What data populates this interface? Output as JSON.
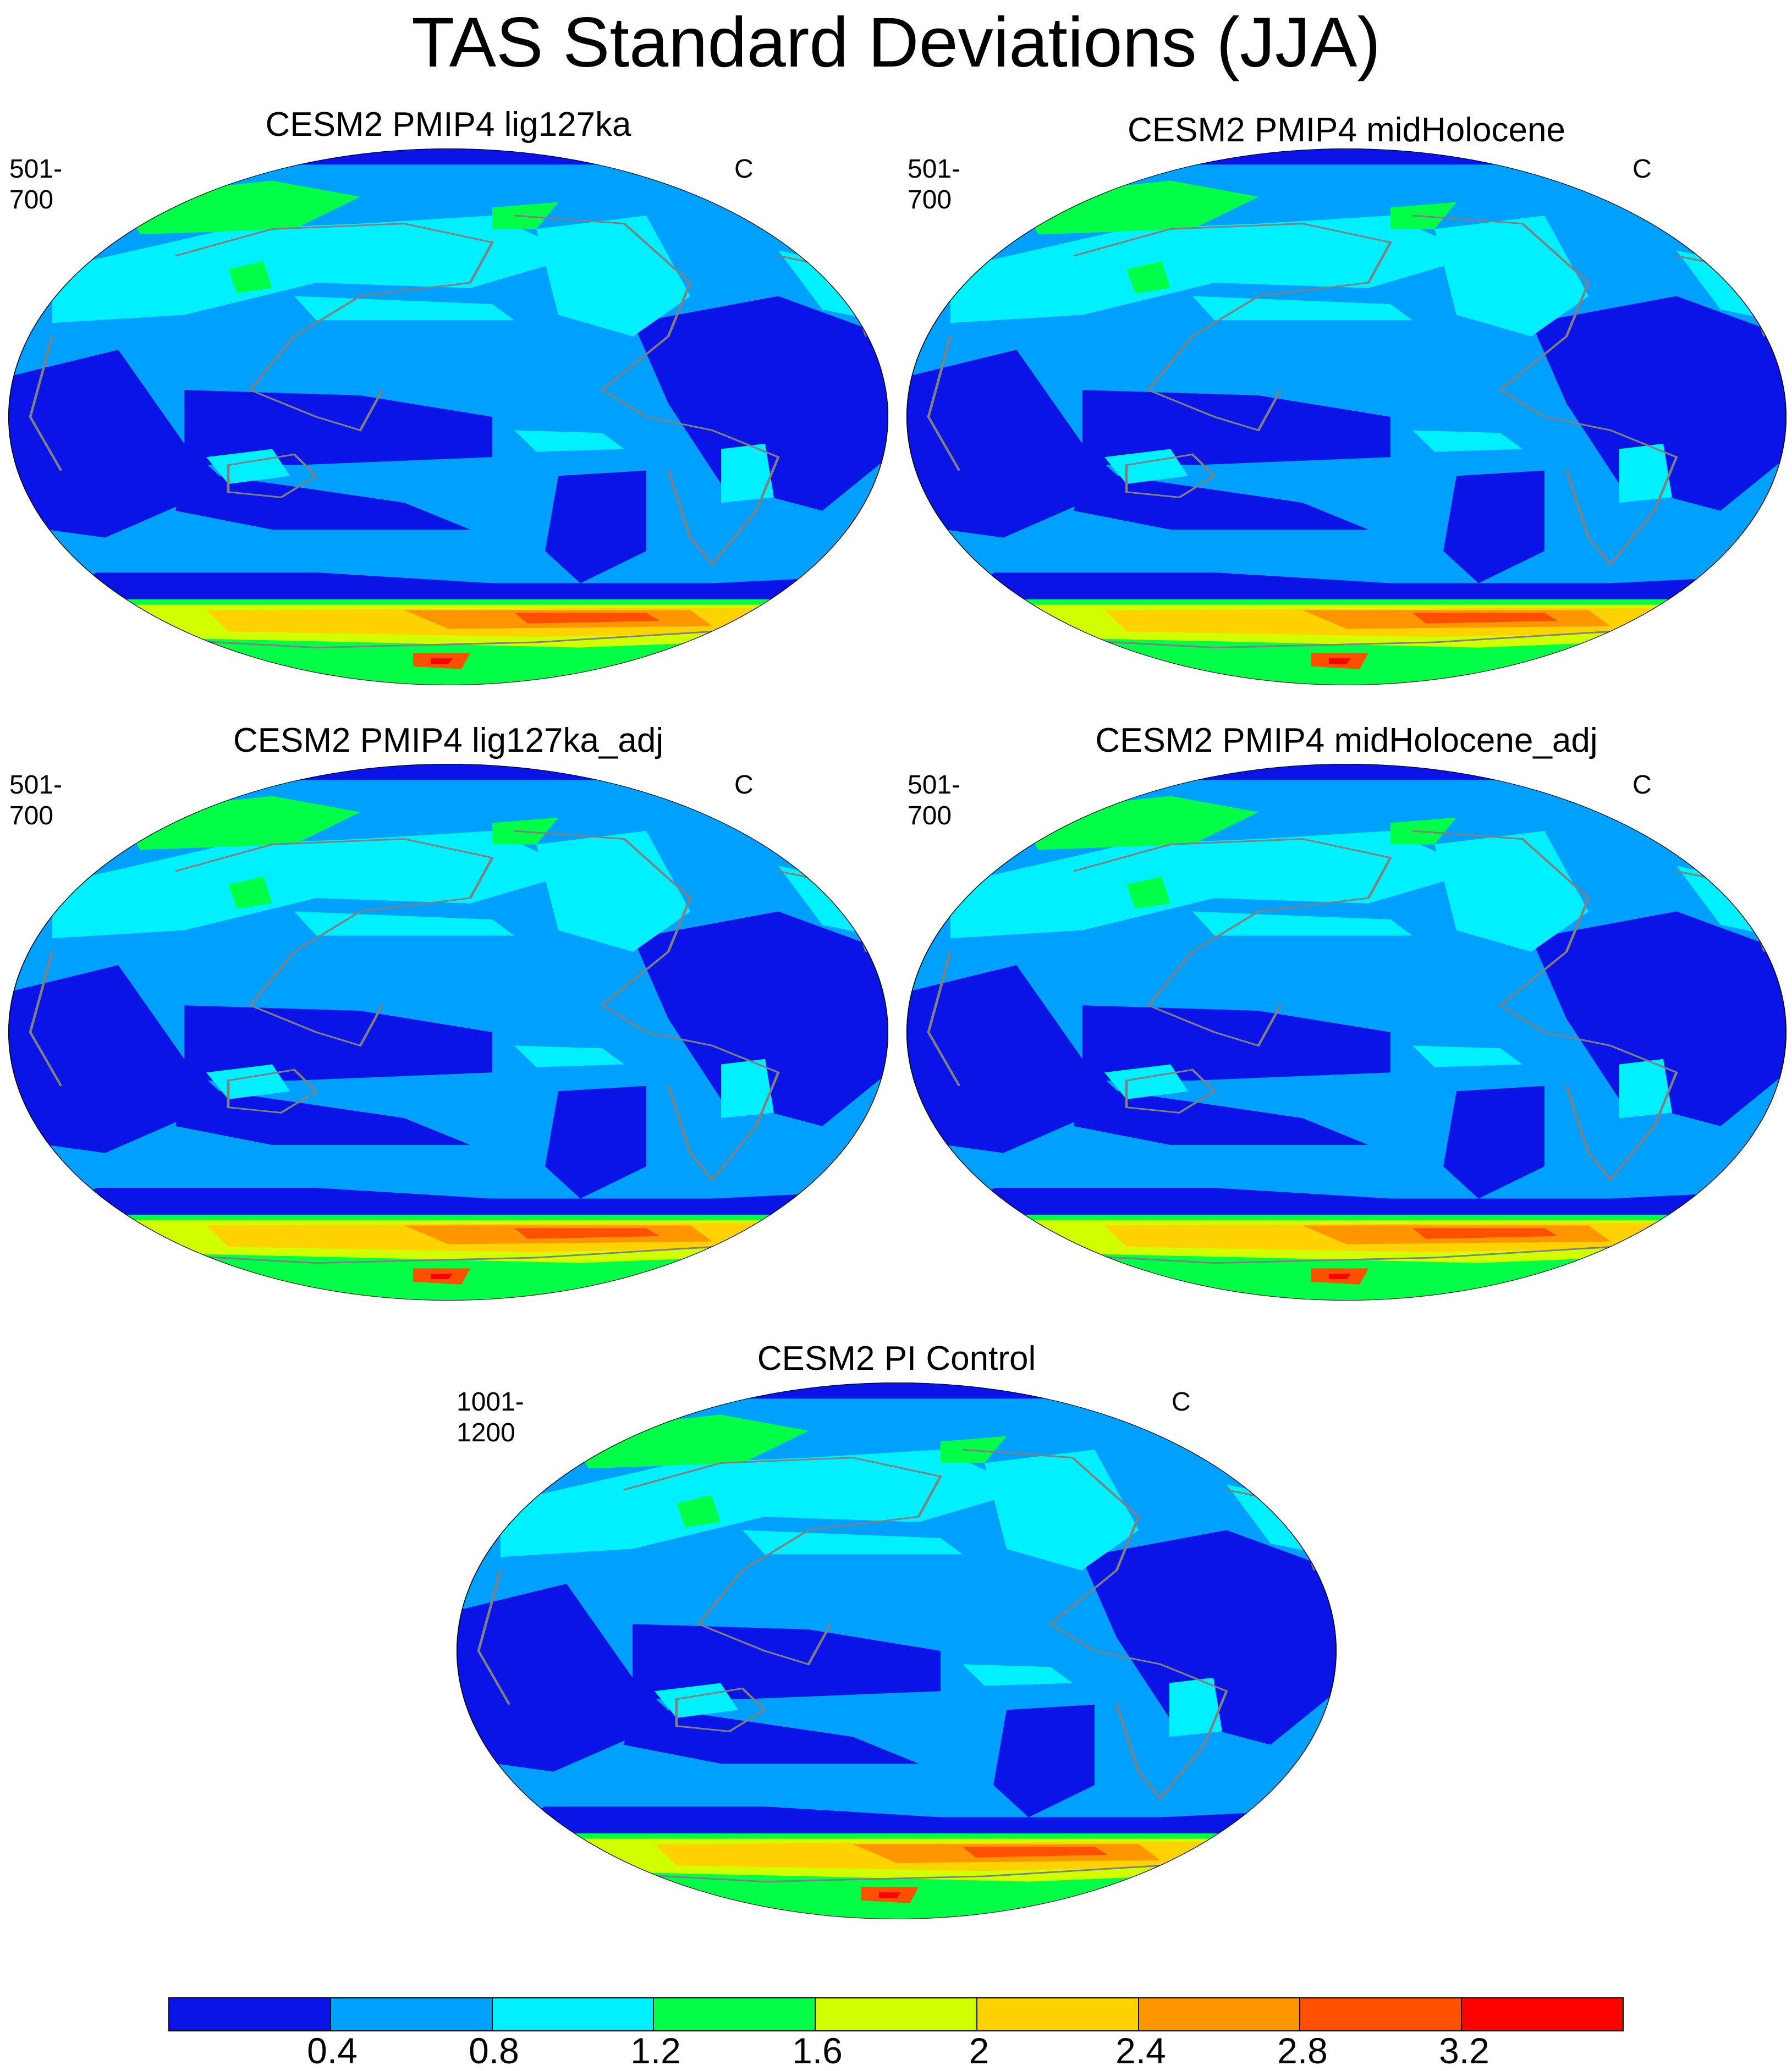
{
  "title": "TAS Standard Deviations (JJA)",
  "colors": {
    "level_0": "#0a14e6",
    "level_1": "#00a0ff",
    "level_2": "#00f0ff",
    "level_3": "#00ff46",
    "level_4": "#d2ff00",
    "level_5": "#ffd200",
    "level_6": "#ff9600",
    "level_7": "#ff5000",
    "level_8": "#ff0000",
    "coast": "#808080"
  },
  "panels": [
    {
      "title": "CESM2 PMIP4 lig127ka",
      "left_label": "501-700",
      "right_label": "C"
    },
    {
      "title": "CESM2 PMIP4 midHolocene",
      "left_label": "501-700",
      "right_label": "C"
    },
    {
      "title": "CESM2 PMIP4 lig127ka_adj",
      "left_label": "501-700",
      "right_label": "C"
    },
    {
      "title": "CESM2 PMIP4 midHolocene_adj",
      "left_label": "501-700",
      "right_label": "C"
    },
    {
      "title": "CESM2 PI Control",
      "left_label": "1001-1200",
      "right_label": "C"
    }
  ],
  "colorbar": {
    "labels": [
      "0.4",
      "0.8",
      "1.2",
      "1.6",
      "2",
      "2.4",
      "2.8",
      "3.2"
    ]
  }
}
